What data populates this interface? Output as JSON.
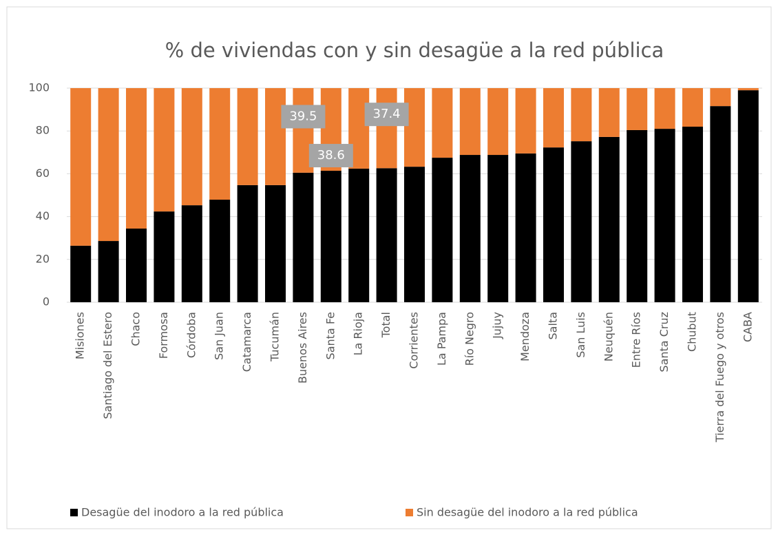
{
  "chart_data": {
    "type": "stacked_bar",
    "title": "% de viviendas con y sin desagüe a la red pública",
    "categories": [
      "Misiones",
      "Santiago del Estero",
      "Chaco",
      "Formosa",
      "Córdoba",
      "San Juan",
      "Catamarca",
      "Tucumán",
      "Buenos Aires",
      "Santa Fe",
      "La Rioja",
      "Total",
      "Corrientes",
      "La Pampa",
      "Río Negro",
      "Jujuy",
      "Mendoza",
      "Salta",
      "San Luis",
      "Neuquén",
      "Entre Ríos",
      "Santa Cruz",
      "Chubut",
      "Tierra del Fuego y otros",
      "CABA"
    ],
    "series": [
      {
        "name": "Desagüe del inodoro a la red pública",
        "color": "#000000",
        "values": [
          26.4,
          28.6,
          34.4,
          42.4,
          45.3,
          47.9,
          54.7,
          54.7,
          60.5,
          61.4,
          62.4,
          62.6,
          63.3,
          67.5,
          68.8,
          68.8,
          69.5,
          72.3,
          75.2,
          77.2,
          80.4,
          81.0,
          82.0,
          91.6,
          99.0
        ]
      },
      {
        "name": "Sin desagüe del inodoro  a la red pública",
        "color": "#ed7d31",
        "values": [
          73.6,
          71.4,
          65.6,
          57.6,
          54.7,
          52.1,
          45.3,
          45.3,
          39.5,
          38.6,
          37.6,
          37.4,
          36.7,
          32.5,
          31.2,
          31.2,
          30.5,
          27.7,
          24.8,
          22.8,
          19.6,
          19.0,
          18.0,
          8.4,
          1.0
        ],
        "value_labels": [
          null,
          null,
          null,
          null,
          null,
          null,
          null,
          null,
          "39.5",
          "38.6",
          null,
          "37.4",
          null,
          null,
          null,
          null,
          null,
          null,
          null,
          null,
          null,
          null,
          null,
          null,
          null
        ]
      }
    ],
    "ylim": [
      0,
      100
    ],
    "yticks": [
      0,
      20,
      40,
      60,
      80,
      100
    ],
    "grid": true,
    "legend": "bottom"
  }
}
